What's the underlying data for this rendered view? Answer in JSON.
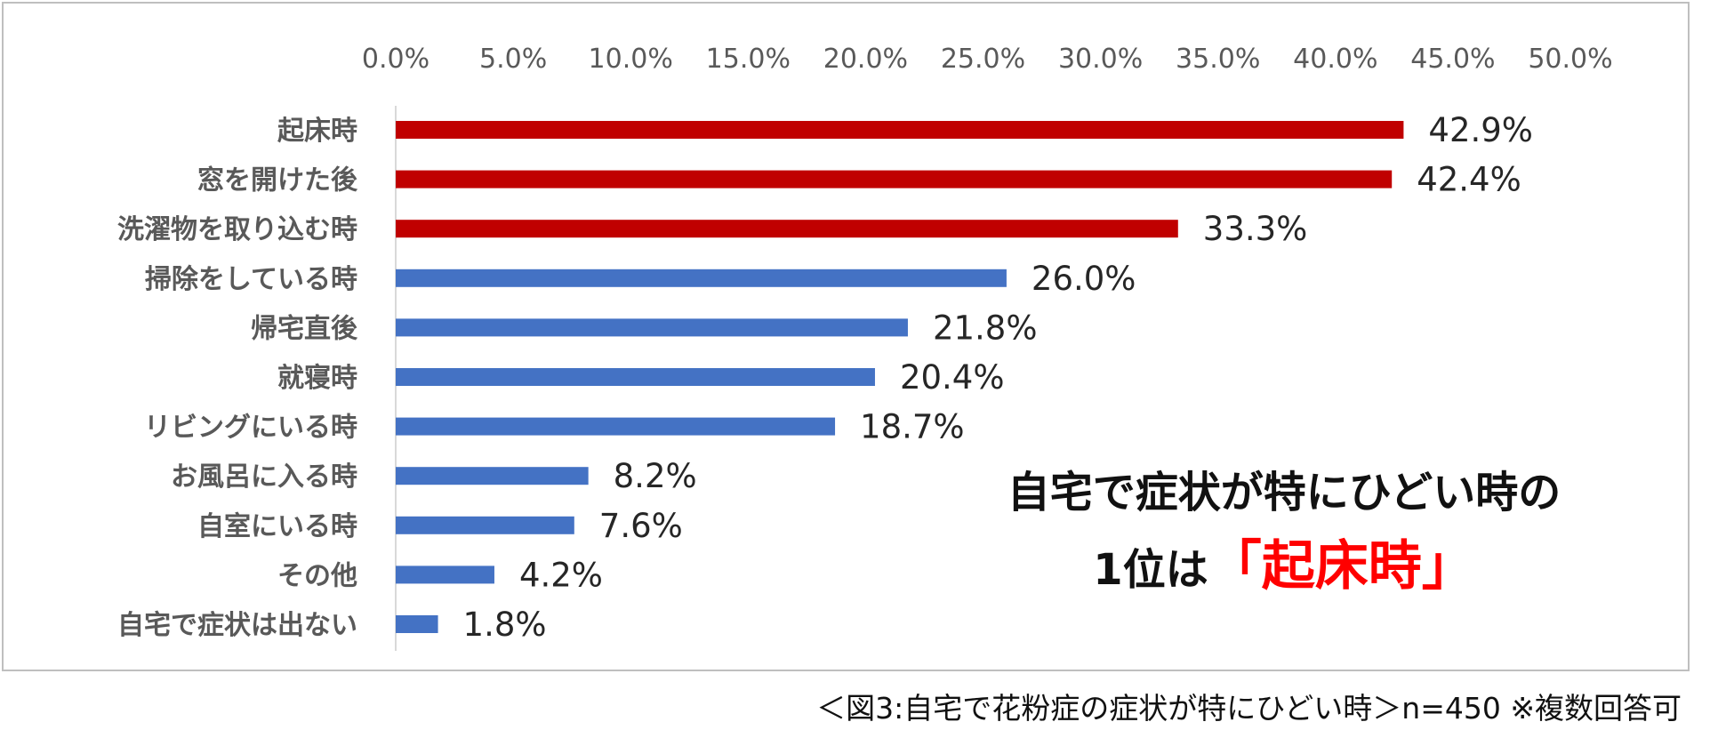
{
  "colors": {
    "highlight_bar": "#c00000",
    "normal_bar": "#4472c4",
    "callout_accent": "#ff0000"
  },
  "callout": {
    "line1": "自宅で症状が特にひどい時の",
    "line2_prefix": "1位は",
    "line2_highlight": "「起床時」"
  },
  "caption": "＜図3:自宅で花粉症の症状が特にひどい時＞n=450 ※複数回答可",
  "chart_data": {
    "type": "bar",
    "orientation": "horizontal",
    "categories": [
      "起床時",
      "窓を開けた後",
      "洗濯物を取り込む時",
      "掃除をしている時",
      "帰宅直後",
      "就寝時",
      "リビングにいる時",
      "お風呂に入る時",
      "自室にいる時",
      "その他",
      "自宅で症状は出ない"
    ],
    "values": [
      42.9,
      42.4,
      33.3,
      26.0,
      21.8,
      20.4,
      18.7,
      8.2,
      7.6,
      4.2,
      1.8
    ],
    "value_labels": [
      "42.9%",
      "42.4%",
      "33.3%",
      "26.0%",
      "21.8%",
      "20.4%",
      "18.7%",
      "8.2%",
      "7.6%",
      "4.2%",
      "1.8%"
    ],
    "highlighted_count": 3,
    "xlim": [
      0,
      50
    ],
    "xticks": [
      0,
      5,
      10,
      15,
      20,
      25,
      30,
      35,
      40,
      45,
      50
    ],
    "xtick_labels": [
      "0.0%",
      "5.0%",
      "10.0%",
      "15.0%",
      "20.0%",
      "25.0%",
      "30.0%",
      "35.0%",
      "40.0%",
      "45.0%",
      "50.0%"
    ],
    "xaxis_position": "top",
    "grid": false,
    "title": "",
    "xlabel": "",
    "ylabel": ""
  }
}
